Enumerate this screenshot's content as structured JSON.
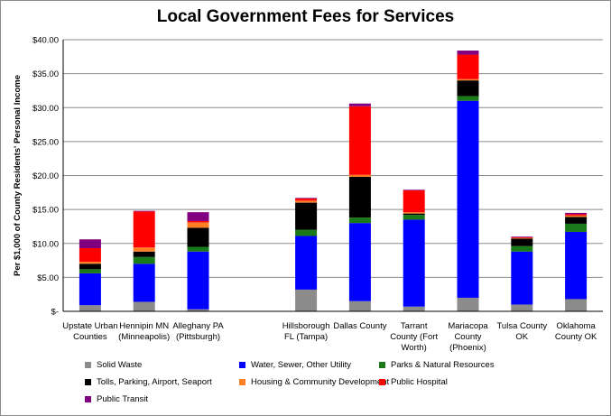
{
  "chart_data": {
    "type": "bar",
    "stacked": true,
    "title": "Local Government Fees for Services",
    "ylabel": "Per $1,000 of County Residents' Personal Income",
    "ylim": [
      0,
      40
    ],
    "yticks": [
      "$-",
      "$5.00",
      "$10.00",
      "$15.00",
      "$20.00",
      "$25.00",
      "$30.00",
      "$35.00",
      "$40.00"
    ],
    "grid": true,
    "legend_position": "bottom",
    "categories": [
      [
        "Upstate Urban",
        "Counties"
      ],
      [
        "Hennipin MN",
        "(Minneapolis)"
      ],
      [
        "Alleghany PA",
        "(Pittsburgh)"
      ],
      [],
      [
        "Hillsborough",
        "FL (Tampa)"
      ],
      [
        "Dallas County"
      ],
      [
        "Tarrant",
        "County (Fort",
        "Worth)"
      ],
      [
        "Mariacopa",
        "County",
        "(Phoenix)"
      ],
      [
        "Tulsa County",
        "OK"
      ],
      [
        "Oklahoma",
        "County OK"
      ]
    ],
    "series": [
      {
        "name": "Solid Waste",
        "color": "#8c8c8c",
        "values": [
          0.9,
          1.4,
          0.3,
          0,
          3.2,
          1.5,
          0.7,
          2.0,
          1.0,
          1.8
        ]
      },
      {
        "name": "Water, Sewer, Other Utility",
        "color": "#0000ff",
        "values": [
          4.7,
          5.6,
          8.5,
          0,
          7.9,
          11.5,
          12.8,
          29.0,
          7.8,
          9.9
        ]
      },
      {
        "name": "Parks & Natural Resources",
        "color": "#1a7a1a",
        "values": [
          0.6,
          1.0,
          0.7,
          0,
          0.9,
          0.8,
          0.7,
          0.7,
          0.8,
          1.2
        ]
      },
      {
        "name": "Tolls, Parking, Airport, Seaport",
        "color": "#000000",
        "values": [
          0.8,
          0.8,
          2.8,
          0,
          4.0,
          6.0,
          0.2,
          2.3,
          1.1,
          1.0
        ]
      },
      {
        "name": "Housing & Community Development",
        "color": "#ff7f27",
        "values": [
          0.3,
          0.6,
          0.8,
          0,
          0.3,
          0.3,
          0.2,
          0.2,
          0.1,
          0.2
        ]
      },
      {
        "name": "Public Hospital",
        "color": "#ff0000",
        "values": [
          2.0,
          5.3,
          0.2,
          0,
          0.3,
          10.1,
          3.2,
          3.6,
          0.1,
          0.2
        ]
      },
      {
        "name": "Public Transit",
        "color": "#800080",
        "values": [
          1.3,
          0.1,
          1.3,
          0,
          0.1,
          0.4,
          0.1,
          0.6,
          0.1,
          0.2
        ]
      }
    ]
  }
}
